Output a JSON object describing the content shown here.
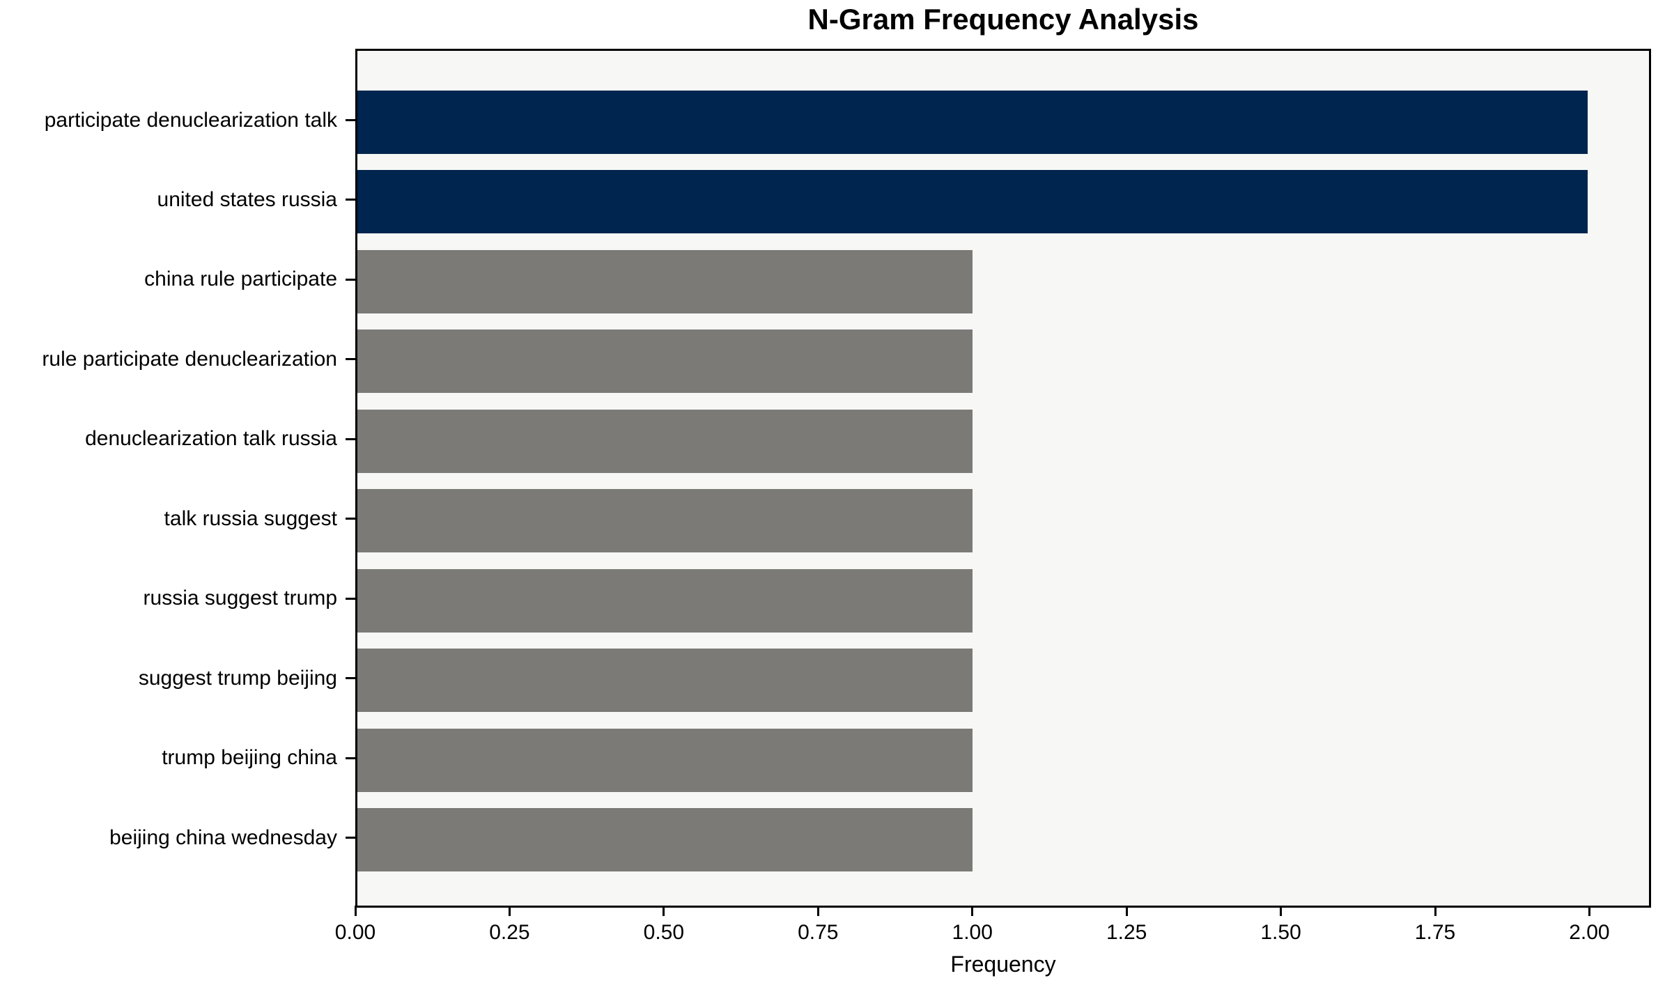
{
  "figure": {
    "background_color": "#ffffff"
  },
  "chart_data": {
    "type": "bar",
    "orientation": "horizontal",
    "title": "N-Gram Frequency Analysis",
    "xlabel": "Frequency",
    "ylabel": "",
    "categories": [
      "participate denuclearization talk",
      "united states russia",
      "china rule participate",
      "rule participate denuclearization",
      "denuclearization talk russia",
      "talk russia suggest",
      "russia suggest trump",
      "suggest trump beijing",
      "trump beijing china",
      "beijing china wednesday"
    ],
    "values": [
      2,
      2,
      1,
      1,
      1,
      1,
      1,
      1,
      1,
      1
    ],
    "bar_colors": [
      "#00254e",
      "#00254e",
      "#7b7a77",
      "#7b7a77",
      "#7b7a77",
      "#7b7a77",
      "#7b7a77",
      "#7b7a77",
      "#7b7a77",
      "#7b7a77"
    ],
    "xlim": [
      0,
      2.1
    ],
    "x_tick_values": [
      0.0,
      0.25,
      0.5,
      0.75,
      1.0,
      1.25,
      1.5,
      1.75,
      2.0
    ],
    "x_tick_labels": [
      "0.00",
      "0.25",
      "0.50",
      "0.75",
      "1.00",
      "1.25",
      "1.50",
      "1.75",
      "2.00"
    ],
    "grid": false,
    "legend": null,
    "colors": {
      "highlight_bar": "#00254e",
      "default_bar": "#7b7a77",
      "plot_background": "#f7f7f6",
      "spine": "#000000",
      "tick_label": "#000000"
    }
  }
}
